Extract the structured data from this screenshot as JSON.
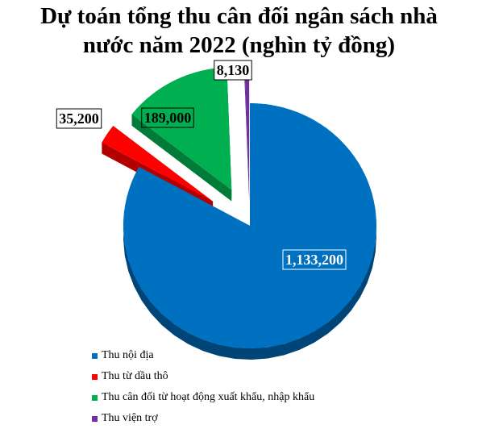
{
  "title_line1": "Dự toán tổng thu cân đối ngân sách nhà",
  "title_line2": "nước năm 2022 (nghìn tỷ đồng)",
  "chart_data": {
    "type": "pie",
    "title": "Dự toán tổng thu cân đối ngân sách nhà nước năm 2022 (nghìn tỷ đồng)",
    "legend_position": "bottom-left",
    "slices": [
      {
        "label": "Thu nội địa",
        "value": 1133200,
        "display": "1,133,200",
        "color": "#0070C0"
      },
      {
        "label": "Thu từ dầu thô",
        "value": 35200,
        "display": "35,200",
        "color": "#FF0000"
      },
      {
        "label": "Thu cân đối từ hoạt động xuất khẩu, nhập khẩu",
        "value": 189000,
        "display": "189,000",
        "color": "#00B050"
      },
      {
        "label": "Thu viện trợ",
        "value": 8130,
        "display": "8,130",
        "color": "#7030A0"
      }
    ]
  }
}
